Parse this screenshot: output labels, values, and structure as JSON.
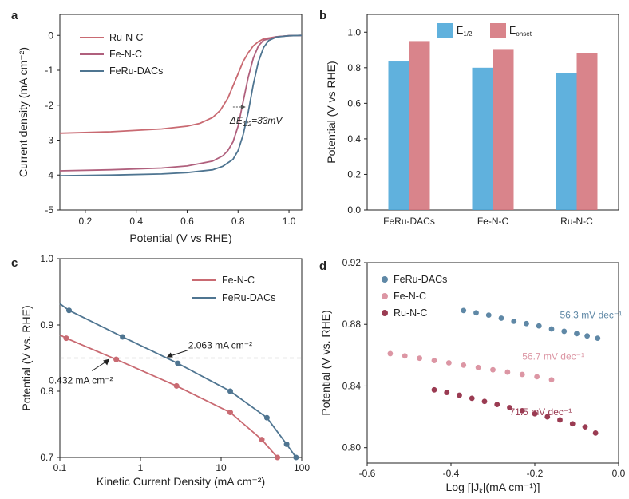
{
  "panel_labels": [
    "a",
    "b",
    "c",
    "d"
  ],
  "chart_data": [
    {
      "id": "a",
      "type": "line",
      "xlabel": "Potential (V vs RHE)",
      "ylabel": "Current density (mA cm⁻²)",
      "xlim": [
        0.1,
        1.05
      ],
      "ylim": [
        -5,
        0.6
      ],
      "xticks": [
        0.2,
        0.4,
        0.6,
        0.8,
        1.0
      ],
      "xtick_labels": [
        "0.2",
        "0.4",
        "0.6",
        "0.8",
        "1.0"
      ],
      "yticks": [
        -5,
        -4,
        -3,
        -2,
        -1,
        0
      ],
      "ytick_labels": [
        "-5",
        "-4",
        "-3",
        "-2",
        "-1",
        "0"
      ],
      "annotation": {
        "text": "ΔE1/2=33mV",
        "x": [
          0.78,
          0.83
        ],
        "y": -2.05
      },
      "series": [
        {
          "name": "Ru-N-C",
          "color": "#c96a72",
          "x": [
            0.1,
            0.3,
            0.5,
            0.6,
            0.65,
            0.7,
            0.73,
            0.76,
            0.78,
            0.8,
            0.82,
            0.84,
            0.86,
            0.88,
            0.9,
            0.95,
            1.0,
            1.05
          ],
          "y": [
            -2.8,
            -2.76,
            -2.68,
            -2.6,
            -2.52,
            -2.35,
            -2.15,
            -1.8,
            -1.45,
            -1.1,
            -0.75,
            -0.5,
            -0.3,
            -0.18,
            -0.1,
            -0.04,
            -0.01,
            0.0
          ]
        },
        {
          "name": "Fe-N-C",
          "color": "#b0607d",
          "x": [
            0.1,
            0.3,
            0.5,
            0.6,
            0.7,
            0.74,
            0.76,
            0.78,
            0.8,
            0.82,
            0.84,
            0.86,
            0.88,
            0.9,
            0.95,
            1.0,
            1.05
          ],
          "y": [
            -3.88,
            -3.85,
            -3.8,
            -3.74,
            -3.6,
            -3.45,
            -3.3,
            -3.05,
            -2.6,
            -1.9,
            -1.2,
            -0.65,
            -0.3,
            -0.14,
            -0.04,
            -0.01,
            0.0
          ]
        },
        {
          "name": "FeRu-DACs",
          "color": "#4f7591",
          "x": [
            0.1,
            0.3,
            0.5,
            0.6,
            0.7,
            0.74,
            0.78,
            0.8,
            0.82,
            0.84,
            0.86,
            0.88,
            0.9,
            0.92,
            0.95,
            1.0,
            1.05
          ],
          "y": [
            -4.02,
            -4.0,
            -3.97,
            -3.93,
            -3.85,
            -3.75,
            -3.55,
            -3.3,
            -2.85,
            -2.2,
            -1.4,
            -0.75,
            -0.35,
            -0.15,
            -0.05,
            -0.01,
            0.0
          ]
        }
      ]
    },
    {
      "id": "b",
      "type": "bar",
      "ylabel": "Potential (V vs RHE)",
      "categories": [
        "FeRu-DACs",
        "Fe-N-C",
        "Ru-N-C"
      ],
      "ylim": [
        0,
        1.1
      ],
      "yticks": [
        0.0,
        0.2,
        0.4,
        0.6,
        0.8,
        1.0
      ],
      "ytick_labels": [
        "0.0",
        "0.2",
        "0.4",
        "0.6",
        "0.8",
        "1.0"
      ],
      "series": [
        {
          "name": "E",
          "sub": "1/2",
          "color": "#4aa6d8",
          "values": [
            0.835,
            0.8,
            0.77
          ]
        },
        {
          "name": "E",
          "sub": "onset",
          "color": "#d4737b",
          "values": [
            0.95,
            0.905,
            0.88
          ]
        }
      ]
    },
    {
      "id": "c",
      "type": "line",
      "xscale": "log",
      "xlabel": "Kinetic Current Density (mA cm⁻²)",
      "ylabel": "Potential (V vs. RHE)",
      "xlim": [
        0.1,
        100
      ],
      "ylim": [
        0.7,
        1.0
      ],
      "xticks": [
        0.1,
        1,
        10,
        100
      ],
      "xtick_labels": [
        "0.1",
        "1",
        "10",
        "100"
      ],
      "yticks": [
        0.7,
        0.8,
        0.9,
        1.0
      ],
      "ytick_labels": [
        "0.7",
        "0.8",
        "0.9",
        "1.0"
      ],
      "reference_y": 0.85,
      "annotations": [
        {
          "text": "2.063 mA cm⁻²",
          "x": 2.063,
          "y": 0.85
        },
        {
          "text": "0.432 mA cm⁻²",
          "x": 0.432,
          "y": 0.85
        }
      ],
      "series": [
        {
          "name": "Fe-N-C",
          "color": "#c96a72",
          "x": [
            0.1,
            0.12,
            0.5,
            2.8,
            13,
            32,
            50
          ],
          "y": [
            0.885,
            0.88,
            0.848,
            0.808,
            0.768,
            0.727,
            0.7
          ],
          "markers": [
            0.12,
            0.5,
            2.8,
            13,
            32,
            50
          ]
        },
        {
          "name": "FeRu-DACs",
          "color": "#4f7591",
          "x": [
            0.1,
            0.13,
            0.6,
            2.9,
            13,
            37,
            65,
            85
          ],
          "y": [
            0.932,
            0.922,
            0.882,
            0.842,
            0.8,
            0.76,
            0.72,
            0.7
          ],
          "markers": [
            0.13,
            0.6,
            2.9,
            13,
            37,
            65,
            85
          ]
        }
      ]
    },
    {
      "id": "d",
      "type": "scatter",
      "xlabel": "Log [|Jk|(mA cm⁻¹)]",
      "ylabel": "Potential (V vs. RHE)",
      "xlim": [
        -0.6,
        0.0
      ],
      "ylim": [
        0.79,
        0.92
      ],
      "xticks": [
        -0.6,
        -0.4,
        -0.2,
        0.0
      ],
      "xtick_labels": [
        "-0.6",
        "-0.4",
        "-0.2",
        "0.0"
      ],
      "yticks": [
        0.8,
        0.84,
        0.88,
        0.92
      ],
      "ytick_labels": [
        "0.80",
        "0.84",
        "0.88",
        "0.92"
      ],
      "series": [
        {
          "name": "FeRu-DACs",
          "color": "#5f88a6",
          "slope_label": "56.3 mV dec⁻¹",
          "x": [
            -0.37,
            -0.34,
            -0.31,
            -0.28,
            -0.25,
            -0.22,
            -0.19,
            -0.16,
            -0.13,
            -0.1,
            -0.075,
            -0.05
          ],
          "y": [
            0.889,
            0.8875,
            0.886,
            0.884,
            0.882,
            0.8805,
            0.879,
            0.877,
            0.8755,
            0.874,
            0.8725,
            0.871
          ]
        },
        {
          "name": "Fe-N-C",
          "color": "#dc96a4",
          "slope_label": "56.7 mV dec⁻¹",
          "x": [
            -0.545,
            -0.51,
            -0.475,
            -0.44,
            -0.405,
            -0.37,
            -0.335,
            -0.3,
            -0.265,
            -0.23,
            -0.195,
            -0.16
          ],
          "y": [
            0.861,
            0.8595,
            0.858,
            0.8565,
            0.855,
            0.8535,
            0.852,
            0.8505,
            0.849,
            0.8475,
            0.846,
            0.844
          ]
        },
        {
          "name": "Ru-N-C",
          "color": "#9a3b52",
          "slope_label": "71.5 mV dec⁻¹",
          "x": [
            -0.44,
            -0.41,
            -0.38,
            -0.35,
            -0.32,
            -0.29,
            -0.26,
            -0.23,
            -0.2,
            -0.17,
            -0.14,
            -0.11,
            -0.08,
            -0.055
          ],
          "y": [
            0.8375,
            0.8358,
            0.834,
            0.832,
            0.83,
            0.828,
            0.826,
            0.824,
            0.822,
            0.82,
            0.818,
            0.8155,
            0.8135,
            0.8095
          ]
        }
      ]
    }
  ]
}
